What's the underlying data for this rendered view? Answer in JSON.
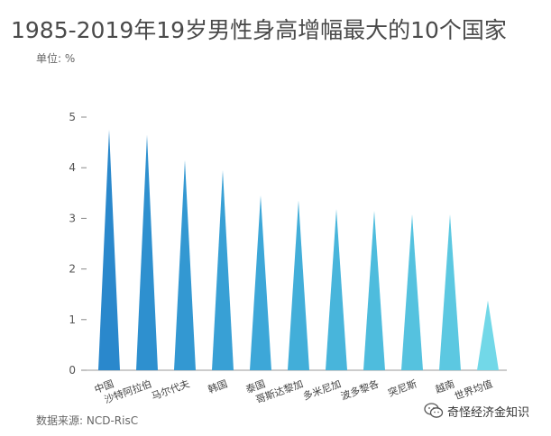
{
  "title": "1985-2019年19岁男性身高增幅最大的10个国家",
  "unit_label": "单位: %",
  "source": "数据来源: NCD-RisC",
  "watermark_text": "奇怪经济金知识",
  "chart_data": {
    "type": "bar",
    "title": "1985-2019年19岁男性身高增幅最大的10个国家",
    "ylabel": "单位: %",
    "xlabel": "",
    "ylim": [
      0,
      5
    ],
    "yticks": [
      0,
      1,
      2,
      3,
      4,
      5
    ],
    "categories": [
      "中国",
      "沙特阿拉伯",
      "马尔代夫",
      "韩国",
      "泰国",
      "哥斯达黎加",
      "多米尼加",
      "波多黎各",
      "突尼斯",
      "越南",
      "世界均值"
    ],
    "values": [
      4.75,
      4.65,
      4.15,
      3.95,
      3.45,
      3.35,
      3.18,
      3.15,
      3.08,
      3.08,
      1.38
    ],
    "colors": [
      "#2a88cc",
      "#2e90cf",
      "#3398d2",
      "#38a0d5",
      "#3da7d8",
      "#42aed9",
      "#48b5db",
      "#4ebcdd",
      "#55c2df",
      "#5cc8e1",
      "#72d8e8"
    ],
    "grid": false,
    "legend": "none"
  }
}
